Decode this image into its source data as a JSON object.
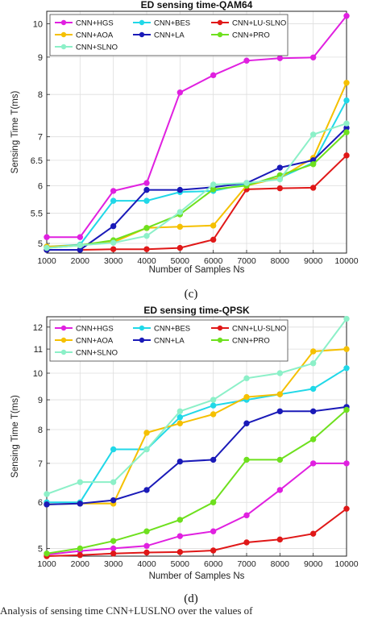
{
  "captions": [
    "(c)",
    "(d)"
  ],
  "footnote": "Analysis of sensing time CNN+LUSLNO over the values of",
  "chart_data": [
    {
      "type": "line",
      "title": "ED sensing time-QAM64",
      "xlabel": "Number of Samples Ns",
      "ylabel": "Sensing Time T(ms)",
      "x": [
        1000,
        2000,
        3000,
        4000,
        5000,
        6000,
        7000,
        8000,
        9000,
        10000
      ],
      "xticks": [
        "1000",
        "2000",
        "3000",
        "4000",
        "5000",
        "6000",
        "7000",
        "8000",
        "9000",
        "10000"
      ],
      "yscale": "log",
      "ylim": [
        4.85,
        10.4
      ],
      "yticks": [
        5,
        5.5,
        6,
        6.5,
        7,
        8,
        9,
        10
      ],
      "yticklabels": [
        "5",
        "5.5",
        "6",
        "6.5",
        "7",
        "8",
        "9",
        "10"
      ],
      "xlim": [
        1000,
        10000
      ],
      "grid": true,
      "legend": "top-left, 3 columns",
      "series": [
        {
          "name": "CNN+HGS",
          "color": "#e020e0",
          "values": [
            5.1,
            5.1,
            5.9,
            6.05,
            8.05,
            8.5,
            8.9,
            8.97,
            8.99,
            10.25
          ]
        },
        {
          "name": "CNN+BES",
          "color": "#20d8e8",
          "values": [
            4.95,
            4.98,
            5.72,
            5.72,
            5.88,
            5.9,
            6.03,
            6.15,
            6.45,
            7.85
          ]
        },
        {
          "name": "CNN+LU-SLNO",
          "color": "#e01818",
          "values": [
            4.9,
            4.9,
            4.91,
            4.91,
            4.93,
            5.06,
            5.93,
            5.95,
            5.96,
            6.6
          ]
        },
        {
          "name": "CNN+AOA",
          "color": "#f5c000",
          "values": [
            4.95,
            4.97,
            5.02,
            5.25,
            5.27,
            5.29,
            6.0,
            6.15,
            6.55,
            8.3
          ]
        },
        {
          "name": "CNN+LA",
          "color": "#1a1ab8",
          "values": [
            4.9,
            4.9,
            5.28,
            5.92,
            5.92,
            5.97,
            6.05,
            6.35,
            6.5,
            7.2
          ]
        },
        {
          "name": "CNN+PRO",
          "color": "#6ee01e",
          "values": [
            4.93,
            4.97,
            5.05,
            5.25,
            5.48,
            5.93,
            6.0,
            6.2,
            6.42,
            7.1
          ]
        },
        {
          "name": "CNN+SLNO",
          "color": "#8cf0c8",
          "values": [
            4.93,
            4.97,
            5.01,
            5.12,
            5.52,
            6.02,
            6.05,
            6.12,
            7.05,
            7.3
          ]
        }
      ]
    },
    {
      "type": "line",
      "title": "ED sensing time-QPSK",
      "xlabel": "Number of Samples Ns",
      "ylabel": "Sensing Time T(ms)",
      "x": [
        1000,
        2000,
        3000,
        4000,
        5000,
        6000,
        7000,
        8000,
        9000,
        10000
      ],
      "xticks": [
        "1000",
        "2000",
        "3000",
        "4000",
        "5000",
        "6000",
        "7000",
        "8000",
        "9000",
        "10000"
      ],
      "yscale": "log",
      "ylim": [
        4.85,
        12.5
      ],
      "yticks": [
        5,
        6,
        7,
        8,
        9,
        10,
        11,
        12
      ],
      "yticklabels": [
        "5",
        "6",
        "7",
        "8",
        "9",
        "10",
        "11",
        "12"
      ],
      "xlim": [
        1000,
        10000
      ],
      "grid": true,
      "legend": "top-left, 3 columns",
      "series": [
        {
          "name": "CNN+HGS",
          "color": "#e020e0",
          "values": [
            4.88,
            4.95,
            5.0,
            5.05,
            5.25,
            5.35,
            5.7,
            6.3,
            7.0,
            7.0
          ]
        },
        {
          "name": "CNN+BES",
          "color": "#20d8e8",
          "values": [
            6.0,
            6.0,
            7.4,
            7.4,
            8.4,
            8.8,
            9.0,
            9.2,
            9.4,
            10.2
          ]
        },
        {
          "name": "CNN+LU-SLNO",
          "color": "#e01818",
          "values": [
            4.85,
            4.87,
            4.9,
            4.92,
            4.93,
            4.96,
            5.12,
            5.18,
            5.3,
            5.85
          ]
        },
        {
          "name": "CNN+AOA",
          "color": "#f5c000",
          "values": [
            5.95,
            5.97,
            5.97,
            7.9,
            8.2,
            8.5,
            9.1,
            9.2,
            10.9,
            11.0
          ]
        },
        {
          "name": "CNN+LA",
          "color": "#1a1ab8",
          "values": [
            5.95,
            5.97,
            6.05,
            6.3,
            7.05,
            7.1,
            8.2,
            8.6,
            8.6,
            8.75
          ]
        },
        {
          "name": "CNN+PRO",
          "color": "#6ee01e",
          "values": [
            4.9,
            5.0,
            5.15,
            5.35,
            5.6,
            6.0,
            7.1,
            7.1,
            7.7,
            8.65
          ]
        },
        {
          "name": "CNN+SLNO",
          "color": "#8cf0c8",
          "values": [
            6.2,
            6.5,
            6.5,
            7.4,
            8.6,
            9.0,
            9.8,
            10.0,
            10.4,
            12.4
          ]
        }
      ]
    }
  ]
}
